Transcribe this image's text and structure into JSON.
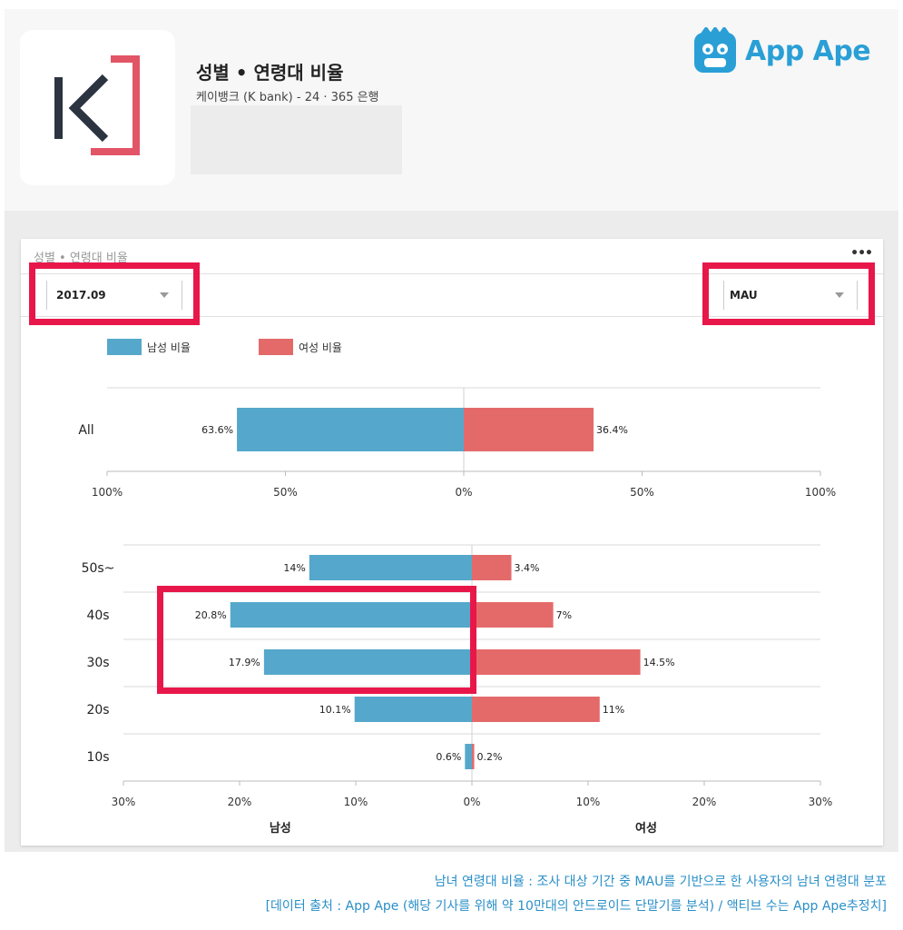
{
  "header": {
    "title": "성별 • 연령대 비율",
    "subtitle": "케이뱅크 (K bank) - 24 · 365 은행",
    "brand": "App Ape",
    "app_icon_letter": "K"
  },
  "card": {
    "title": "성별 • 연령대 비율",
    "menu": "•••",
    "month_select": "2017.09",
    "metric_select": "MAU"
  },
  "legend": {
    "male": "남성 비율",
    "female": "여성 비율"
  },
  "colors": {
    "male": "#55a8cb",
    "female": "#e46a6a",
    "highlight": "#e8174a",
    "brand": "#2a9fd6"
  },
  "chart_data": [
    {
      "type": "bar",
      "orientation": "horizontal-diverging",
      "categories": [
        "All"
      ],
      "series": [
        {
          "name": "남성 비율",
          "values": [
            63.6
          ]
        },
        {
          "name": "여성 비율",
          "values": [
            36.4
          ]
        }
      ],
      "value_labels": {
        "male": [
          "63.6%"
        ],
        "female": [
          "36.4%"
        ]
      },
      "ticks": [
        "100%",
        "50%",
        "0%",
        "50%",
        "100%"
      ],
      "xlim": [
        -100,
        100
      ]
    },
    {
      "type": "bar",
      "orientation": "horizontal-diverging",
      "categories": [
        "50s~",
        "40s",
        "30s",
        "20s",
        "10s"
      ],
      "series": [
        {
          "name": "남성 비율",
          "values": [
            14,
            20.8,
            17.9,
            10.1,
            0.6
          ]
        },
        {
          "name": "여성 비율",
          "values": [
            3.4,
            7,
            14.5,
            11,
            0.2
          ]
        }
      ],
      "value_labels": {
        "male": [
          "14%",
          "20.8%",
          "17.9%",
          "10.1%",
          "0.6%"
        ],
        "female": [
          "3.4%",
          "7%",
          "14.5%",
          "11%",
          "0.2%"
        ]
      },
      "ticks": [
        "30%",
        "20%",
        "10%",
        "0%",
        "10%",
        "20%",
        "30%"
      ],
      "xlim": [
        -30,
        30
      ],
      "xlabel_left": "남성",
      "xlabel_right": "여성"
    }
  ],
  "footer": {
    "line1": "남녀 연령대 비율 : 조사 대상 기간 중 MAU를 기반으로 한 사용자의 남녀 연령대 분포",
    "line2": "[데이터 출처 : App Ape (해당 기사를 위해 약 10만대의 안드로이드 단말기를 분석) / 액티브 수는 App Ape추정치]"
  }
}
